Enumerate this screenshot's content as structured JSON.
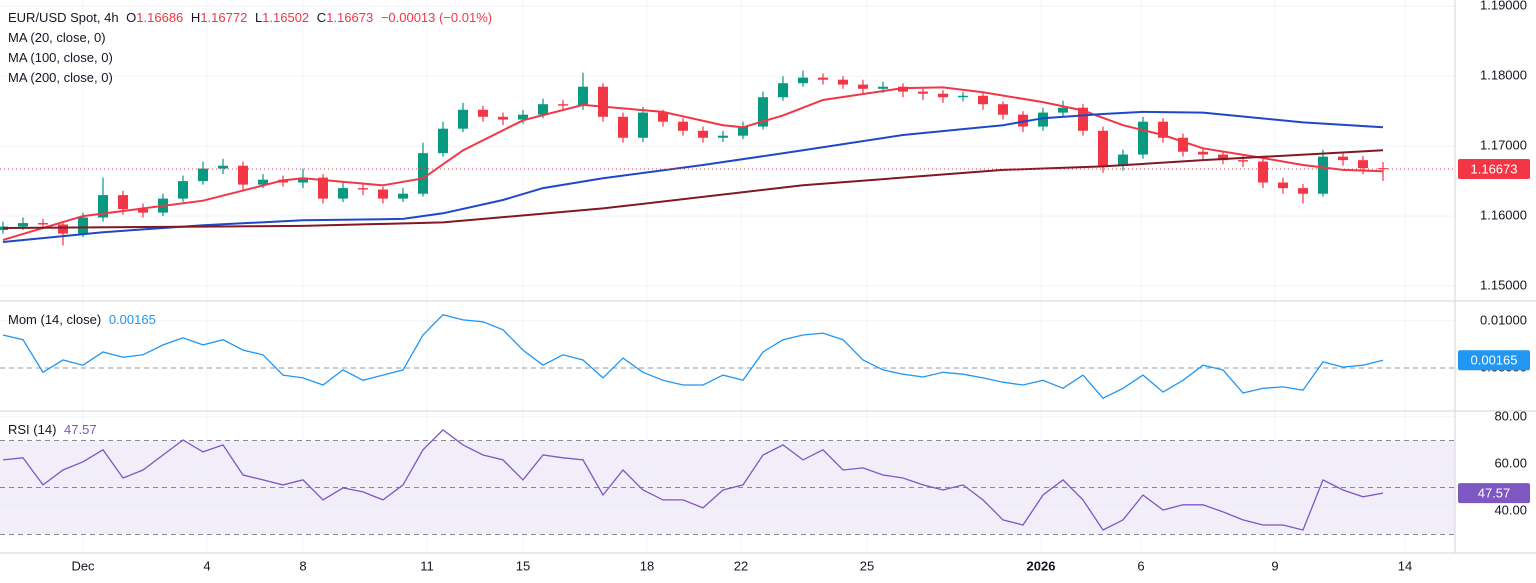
{
  "chart_data": [
    {
      "type": "candlestick",
      "title": "EUR/USD Spot, 4h",
      "ohlc_labels": [
        "O",
        "H",
        "L",
        "C"
      ],
      "change": "−0.00013 (−0.01%)",
      "up_color": "#089981",
      "down_color": "#f23645",
      "open": [
        1.158,
        1.1585,
        1.159,
        1.1588,
        1.1575,
        1.1598,
        1.163,
        1.161,
        1.1605,
        1.1625,
        1.165,
        1.1668,
        1.1672,
        1.1645,
        1.1652,
        1.1648,
        1.1655,
        1.1625,
        1.164,
        1.1638,
        1.1625,
        1.1632,
        1.169,
        1.1725,
        1.1752,
        1.1742,
        1.1738,
        1.1745,
        1.176,
        1.1758,
        1.1785,
        1.1742,
        1.1712,
        1.1748,
        1.1735,
        1.1722,
        1.1712,
        1.1715,
        1.1728,
        1.177,
        1.179,
        1.1798,
        1.1795,
        1.1788,
        1.1782,
        1.1785,
        1.1778,
        1.1775,
        1.177,
        1.1772,
        1.176,
        1.1745,
        1.1728,
        1.1748,
        1.1755,
        1.1722,
        1.1672,
        1.1688,
        1.1735,
        1.1712,
        1.1692,
        1.1688,
        1.168,
        1.1678,
        1.1648,
        1.164,
        1.1632,
        1.1685,
        1.168,
        1.16686
      ],
      "high": [
        1.1592,
        1.1598,
        1.1596,
        1.1592,
        1.1605,
        1.1655,
        1.1636,
        1.1618,
        1.1632,
        1.1658,
        1.1678,
        1.1682,
        1.1678,
        1.166,
        1.1658,
        1.1668,
        1.166,
        1.165,
        1.1648,
        1.1642,
        1.164,
        1.1705,
        1.1735,
        1.1762,
        1.1758,
        1.1748,
        1.1752,
        1.1768,
        1.1766,
        1.1805,
        1.179,
        1.1748,
        1.1756,
        1.1752,
        1.174,
        1.1728,
        1.1722,
        1.1735,
        1.1778,
        1.18,
        1.1808,
        1.1804,
        1.18,
        1.1795,
        1.1792,
        1.179,
        1.1784,
        1.178,
        1.1778,
        1.1776,
        1.1764,
        1.175,
        1.1755,
        1.1765,
        1.176,
        1.1728,
        1.1695,
        1.1742,
        1.174,
        1.1718,
        1.1698,
        1.1692,
        1.1686,
        1.1682,
        1.1655,
        1.1646,
        1.1695,
        1.1692,
        1.1686,
        1.16772
      ],
      "low": [
        1.1575,
        1.158,
        1.1582,
        1.1558,
        1.157,
        1.1592,
        1.1602,
        1.1598,
        1.16,
        1.162,
        1.1645,
        1.166,
        1.1638,
        1.164,
        1.1642,
        1.164,
        1.1618,
        1.162,
        1.163,
        1.1618,
        1.162,
        1.1628,
        1.1685,
        1.172,
        1.1735,
        1.173,
        1.1732,
        1.174,
        1.175,
        1.1752,
        1.1735,
        1.1705,
        1.1706,
        1.1728,
        1.1715,
        1.1705,
        1.1706,
        1.171,
        1.1724,
        1.1765,
        1.1785,
        1.1788,
        1.1782,
        1.1776,
        1.1776,
        1.177,
        1.1766,
        1.1762,
        1.1764,
        1.1752,
        1.1738,
        1.172,
        1.1722,
        1.1742,
        1.1715,
        1.1662,
        1.1665,
        1.1682,
        1.1705,
        1.1685,
        1.168,
        1.1674,
        1.167,
        1.164,
        1.1632,
        1.1618,
        1.1628,
        1.1672,
        1.166,
        1.16502
      ],
      "close": [
        1.1585,
        1.159,
        1.1588,
        1.1575,
        1.1598,
        1.163,
        1.161,
        1.1605,
        1.1625,
        1.165,
        1.1668,
        1.1672,
        1.1645,
        1.1652,
        1.1648,
        1.1655,
        1.1625,
        1.164,
        1.1638,
        1.1625,
        1.1632,
        1.169,
        1.1725,
        1.1752,
        1.1742,
        1.1738,
        1.1745,
        1.176,
        1.1758,
        1.1785,
        1.1742,
        1.1712,
        1.1748,
        1.1735,
        1.1722,
        1.1712,
        1.1715,
        1.1728,
        1.177,
        1.179,
        1.1798,
        1.1795,
        1.1788,
        1.1782,
        1.1785,
        1.1778,
        1.1775,
        1.177,
        1.1772,
        1.176,
        1.1745,
        1.1728,
        1.1748,
        1.1755,
        1.1722,
        1.1672,
        1.1688,
        1.1735,
        1.1712,
        1.1692,
        1.1688,
        1.168,
        1.1678,
        1.1648,
        1.164,
        1.1632,
        1.1685,
        1.168,
        1.16686,
        1.16673
      ],
      "series": [
        {
          "name": "MA (20, close, 0)",
          "color": "#f23645",
          "x": [
            0,
            4,
            10,
            14,
            15,
            19,
            21,
            23,
            26,
            29,
            31,
            33,
            36,
            37,
            39,
            41,
            45,
            47,
            49,
            52,
            54,
            56,
            58,
            60,
            63,
            65,
            67,
            69
          ],
          "values": [
            1.1566,
            1.16,
            1.1622,
            1.1651,
            1.1654,
            1.1644,
            1.1654,
            1.1694,
            1.1737,
            1.1759,
            1.1754,
            1.1749,
            1.173,
            1.1727,
            1.1744,
            1.1766,
            1.1783,
            1.1784,
            1.1777,
            1.1763,
            1.1751,
            1.173,
            1.1716,
            1.1697,
            1.1683,
            1.1673,
            1.1666,
            1.1664
          ]
        },
        {
          "name": "MA (100, close, 0)",
          "color": "#1e48c8",
          "x": [
            0,
            5,
            10,
            15,
            20,
            22,
            25,
            27,
            30,
            35,
            40,
            45,
            50,
            52,
            55,
            57,
            60,
            65,
            69
          ],
          "values": [
            1.1563,
            1.1577,
            1.1587,
            1.1594,
            1.1596,
            1.1604,
            1.1623,
            1.164,
            1.1654,
            1.1673,
            1.1694,
            1.1716,
            1.173,
            1.174,
            1.1746,
            1.1749,
            1.1748,
            1.1734,
            1.1727
          ]
        },
        {
          "name": "MA (200, close, 0)",
          "color": "#801922",
          "x": [
            0,
            15,
            22,
            30,
            40,
            50,
            55,
            60,
            69
          ],
          "values": [
            1.1583,
            1.1586,
            1.1591,
            1.1611,
            1.1644,
            1.1666,
            1.1671,
            1.168,
            1.1694
          ]
        }
      ],
      "ylim": [
        1.148,
        1.1909
      ],
      "yticks": [
        {
          "value": 1.19,
          "label": "1.19000"
        },
        {
          "value": 1.18,
          "label": "1.18000"
        },
        {
          "value": 1.17,
          "label": "1.17000"
        },
        {
          "value": 1.16,
          "label": "1.16000"
        },
        {
          "value": 1.15,
          "label": "1.15000"
        }
      ],
      "xlim": [
        -0.15,
        72.6
      ],
      "xticks": [
        {
          "value": 4.0,
          "label": "Dec"
        },
        {
          "value": 10.2,
          "label": "4"
        },
        {
          "value": 15.0,
          "label": "8"
        },
        {
          "value": 21.2,
          "label": "11"
        },
        {
          "value": 26.0,
          "label": "15"
        },
        {
          "value": 32.2,
          "label": "18"
        },
        {
          "value": 36.9,
          "label": "22"
        },
        {
          "value": 43.2,
          "label": "25"
        },
        {
          "value": 51.9,
          "label": "2026"
        },
        {
          "value": 56.9,
          "label": "6"
        },
        {
          "value": 63.6,
          "label": "9"
        },
        {
          "value": 70.1,
          "label": "14"
        }
      ],
      "grid": true
    },
    {
      "type": "line",
      "title": "Mom (14, close)",
      "series": [
        {
          "color": "#2196f3",
          "values": [
            0.007,
            0.006,
            -0.0009,
            0.0017,
            0.0006,
            0.0034,
            0.0023,
            0.0028,
            0.0049,
            0.0064,
            0.0049,
            0.006,
            0.0038,
            0.0028,
            -0.0015,
            -0.0021,
            -0.0036,
            -0.0004,
            -0.0026,
            -0.0015,
            -0.0004,
            0.007,
            0.0113,
            0.0102,
            0.0098,
            0.0081,
            0.0038,
            0.0006,
            0.0028,
            0.0017,
            -0.0021,
            0.0021,
            -0.0009,
            -0.0026,
            -0.0036,
            -0.0036,
            -0.0015,
            -0.0026,
            0.0034,
            0.006,
            0.007,
            0.0074,
            0.006,
            0.0017,
            -0.0004,
            -0.0013,
            -0.0019,
            -0.0009,
            -0.0013,
            -0.0021,
            -0.003,
            -0.0036,
            -0.0026,
            -0.0043,
            -0.0015,
            -0.0064,
            -0.0043,
            -0.0015,
            -0.0051,
            -0.0026,
            0.0006,
            -0.0004,
            -0.0053,
            -0.0043,
            -0.004,
            -0.0047,
            0.0013,
            0.0002,
            0.0006,
            0.00165
          ]
        }
      ],
      "ylim": [
        -0.0089,
        0.014
      ],
      "yticks": [
        {
          "value": 0.01,
          "label": "0.01000"
        },
        {
          "value": 0,
          "label": "0.00000"
        }
      ],
      "levels": [
        0
      ],
      "grid": true
    },
    {
      "type": "line",
      "title": "RSI (14)",
      "series": [
        {
          "color": "#7e57c2",
          "values": [
            61.7,
            62.6,
            51.1,
            57.4,
            60.9,
            66.0,
            54.0,
            57.4,
            63.8,
            70.2,
            65.1,
            68.1,
            55.3,
            53.2,
            51.1,
            53.2,
            44.7,
            49.8,
            48.1,
            44.7,
            51.1,
            66.0,
            74.5,
            68.1,
            63.8,
            61.7,
            53.2,
            63.8,
            62.6,
            61.7,
            46.8,
            57.4,
            48.9,
            44.7,
            44.7,
            41.3,
            48.9,
            51.1,
            63.8,
            68.1,
            61.7,
            66.0,
            57.4,
            58.3,
            55.3,
            54.0,
            51.1,
            48.9,
            51.1,
            44.7,
            36.2,
            34.0,
            46.8,
            53.2,
            44.7,
            31.9,
            36.2,
            46.8,
            40.4,
            42.6,
            42.6,
            39.6,
            36.2,
            34.0,
            34.0,
            31.9,
            53.2,
            48.9,
            46.0,
            47.57
          ]
        }
      ],
      "ylim": [
        22.1,
        82.1
      ],
      "yticks": [
        {
          "value": 80,
          "label": "80.00"
        },
        {
          "value": 60,
          "label": "60.00"
        },
        {
          "value": 40,
          "label": "40.00"
        }
      ],
      "band": [
        30,
        70
      ],
      "levels": [
        70,
        50,
        30
      ],
      "grid": true
    }
  ]
}
